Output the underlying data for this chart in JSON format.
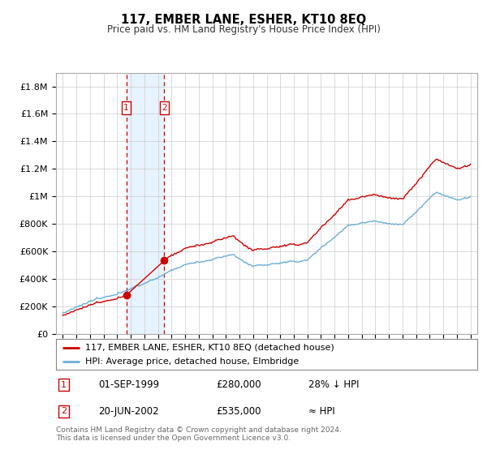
{
  "title": "117, EMBER LANE, ESHER, KT10 8EQ",
  "subtitle": "Price paid vs. HM Land Registry's House Price Index (HPI)",
  "legend_line1": "117, EMBER LANE, ESHER, KT10 8EQ (detached house)",
  "legend_line2": "HPI: Average price, detached house, Elmbridge",
  "transaction1_date": "01-SEP-1999",
  "transaction1_price": "£280,000",
  "transaction1_hpi": "28% ↓ HPI",
  "transaction2_date": "20-JUN-2002",
  "transaction2_price": "£535,000",
  "transaction2_hpi": "≈ HPI",
  "footer": "Contains HM Land Registry data © Crown copyright and database right 2024.\nThis data is licensed under the Open Government Licence v3.0.",
  "hpi_color": "#6baed6",
  "price_color": "#cc0000",
  "vline1_x": 1999.67,
  "vline2_x": 2002.47,
  "t1_x": 1999.67,
  "t1_y": 280000,
  "t2_x": 2002.47,
  "t2_y": 535000,
  "ylim_max": 1900000,
  "xlim_min": 1994.5,
  "xlim_max": 2025.5,
  "yticks": [
    0,
    200000,
    400000,
    600000,
    800000,
    1000000,
    1200000,
    1400000,
    1600000,
    1800000
  ],
  "ytick_labels": [
    "£0",
    "£200K",
    "£400K",
    "£600K",
    "£800K",
    "£1M",
    "£1.2M",
    "£1.4M",
    "£1.6M",
    "£1.8M"
  ],
  "xticks": [
    1995,
    1996,
    1997,
    1998,
    1999,
    2000,
    2001,
    2002,
    2003,
    2004,
    2005,
    2006,
    2007,
    2008,
    2009,
    2010,
    2011,
    2012,
    2013,
    2014,
    2015,
    2016,
    2017,
    2018,
    2019,
    2020,
    2021,
    2022,
    2023,
    2024,
    2025
  ]
}
